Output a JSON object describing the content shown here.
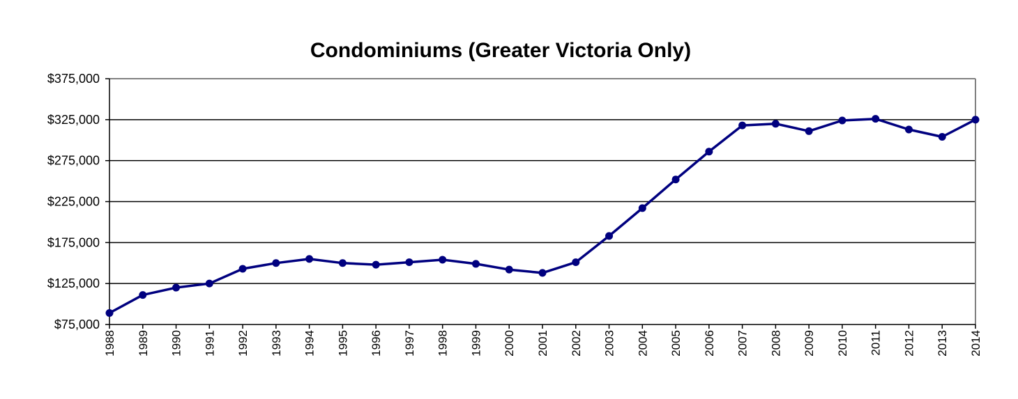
{
  "chart_data": {
    "type": "line",
    "title": "Condominiums (Greater Victoria Only)",
    "xlabel": "",
    "ylabel": "",
    "categories": [
      "1988",
      "1989",
      "1990",
      "1991",
      "1992",
      "1993",
      "1994",
      "1995",
      "1996",
      "1997",
      "1998",
      "1999",
      "2000",
      "2001",
      "2002",
      "2003",
      "2004",
      "2005",
      "2006",
      "2007",
      "2008",
      "2009",
      "2010",
      "2011",
      "2012",
      "2013",
      "2014"
    ],
    "series": [
      {
        "values": [
          89000,
          111000,
          120000,
          125000,
          143000,
          150000,
          155000,
          150000,
          148000,
          151000,
          154000,
          149000,
          142000,
          138000,
          151000,
          183000,
          217000,
          252000,
          286000,
          318000,
          320000,
          311000,
          324000,
          326000,
          313000,
          304000,
          325000
        ],
        "color": "#00007f"
      }
    ],
    "ylim": [
      75000,
      375000
    ],
    "y_ticks": [
      75000,
      125000,
      175000,
      225000,
      275000,
      325000,
      375000
    ],
    "y_tick_labels": [
      "$75,000",
      "$125,000",
      "$175,000",
      "$225,000",
      "$275,000",
      "$325,000",
      "$375,000"
    ],
    "grid": true,
    "legend": "none",
    "colors": {
      "line": "#00007f",
      "marker": "#00007f",
      "gridline": "#000000",
      "plot_border": "#808080",
      "axis": "#000000"
    }
  }
}
